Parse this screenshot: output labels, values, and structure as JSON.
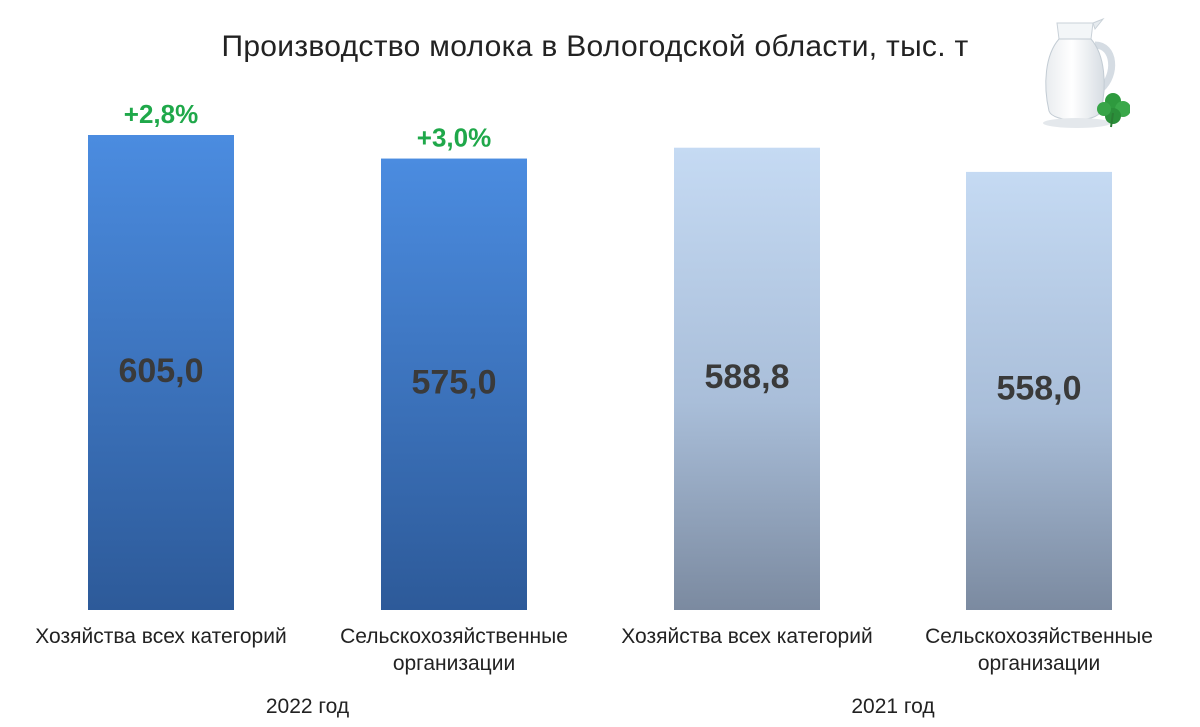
{
  "chart_data": {
    "type": "bar",
    "title": "Производство молока в Вологодской области, тыс. т",
    "groups": [
      {
        "label": "2022 год",
        "bars": [
          {
            "category": "Хозяйства всех категорий",
            "value": 605.0,
            "value_label": "605,0",
            "change_label": "+2,8%",
            "color": "#4a86d8"
          },
          {
            "category": "Сельскохозяйственные организации",
            "value": 575.0,
            "value_label": "575,0",
            "change_label": "+3,0%",
            "color": "#4a86d8"
          }
        ]
      },
      {
        "label": "2021 год",
        "bars": [
          {
            "category": "Хозяйства всех категорий",
            "value": 588.8,
            "value_label": "588,8",
            "change_label": "",
            "color": "#c2d6ef"
          },
          {
            "category": "Сельскохозяйственные организации",
            "value": 558.0,
            "value_label": "558,0",
            "change_label": "",
            "color": "#c2d6ef"
          }
        ]
      }
    ],
    "change_color": "#1fa84a",
    "value_label_color": "#3a3a3a"
  },
  "image": {
    "icon": "milk-jug-icon",
    "accent_icon": "clover-icon"
  }
}
